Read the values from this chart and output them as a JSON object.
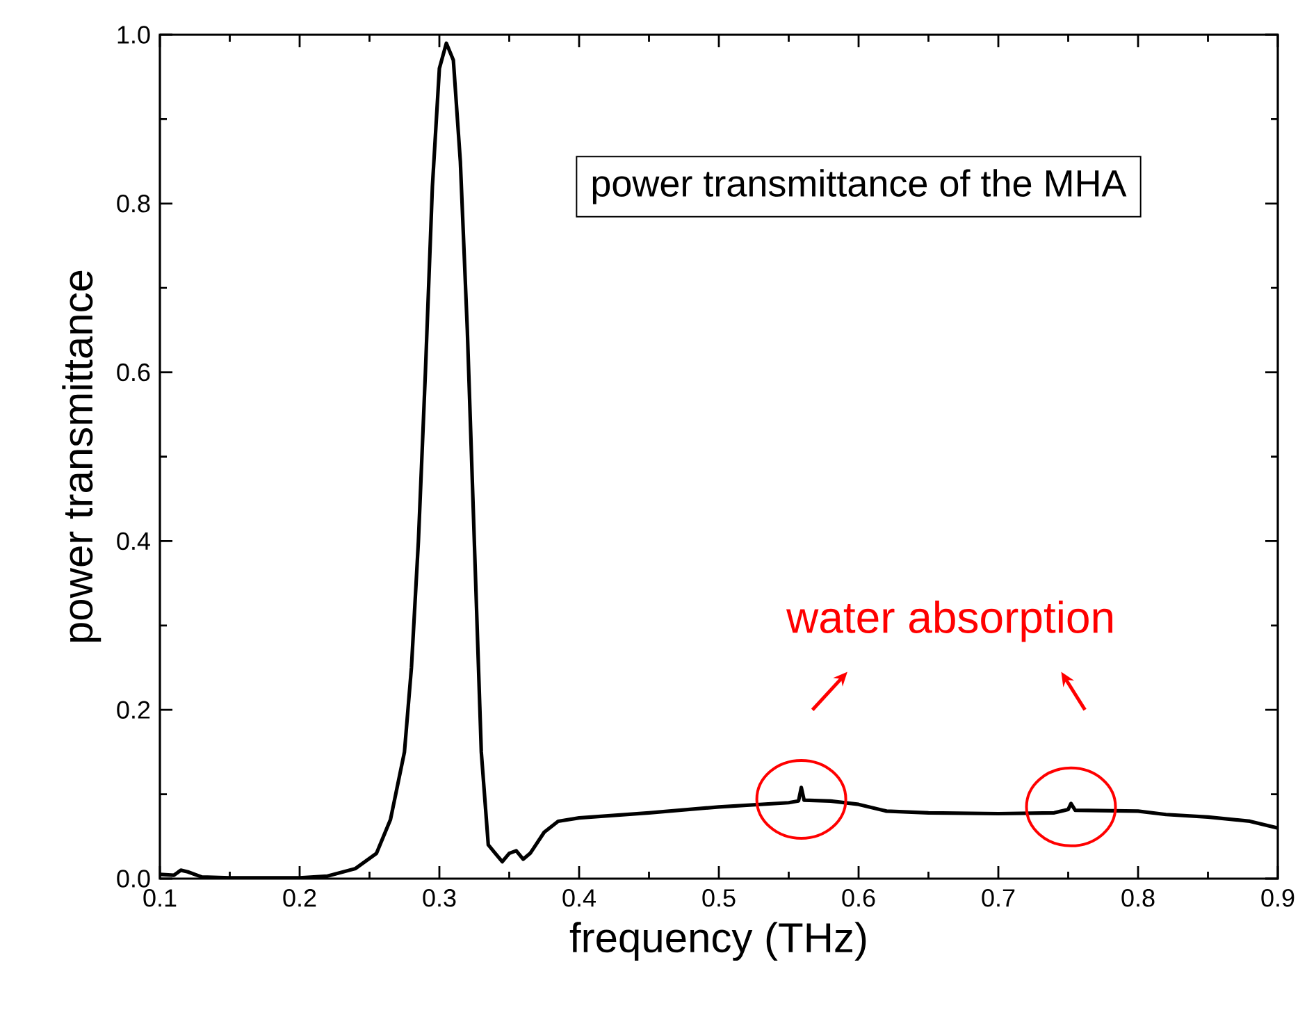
{
  "chart_data": {
    "type": "line",
    "xlabel": "frequency (THz)",
    "ylabel": "power transmittance",
    "annotations": [
      "power transmittance of the MHA",
      "water absorption"
    ],
    "xlim": [
      0.1,
      0.9
    ],
    "ylim": [
      0,
      1.0
    ],
    "xticks": [
      0.1,
      0.2,
      0.3,
      0.4,
      0.5,
      0.6,
      0.7,
      0.8,
      0.9
    ],
    "yticks": [
      {
        "value": 0,
        "label": "0.0"
      },
      0.2,
      0.4,
      0.6,
      0.8,
      {
        "value": 1.0,
        "label": "1.0"
      }
    ],
    "marker": "none",
    "line_style": "solid",
    "series": [
      {
        "color": "#000000",
        "x": [
          0.1,
          0.11,
          0.115,
          0.12,
          0.13,
          0.15,
          0.2,
          0.22,
          0.24,
          0.255,
          0.265,
          0.275,
          0.28,
          0.285,
          0.29,
          0.295,
          0.3,
          0.305,
          0.31,
          0.315,
          0.32,
          0.325,
          0.33,
          0.335,
          0.34,
          0.345,
          0.35,
          0.355,
          0.36,
          0.365,
          0.375,
          0.385,
          0.4,
          0.45,
          0.5,
          0.55,
          0.557,
          0.559,
          0.561,
          0.58,
          0.6,
          0.62,
          0.65,
          0.7,
          0.74,
          0.75,
          0.752,
          0.755,
          0.8,
          0.82,
          0.85,
          0.88,
          0.9
        ],
        "values": [
          0.005,
          0.004,
          0.01,
          0.008,
          0.002,
          0.001,
          0.001,
          0.003,
          0.012,
          0.03,
          0.07,
          0.15,
          0.25,
          0.4,
          0.6,
          0.82,
          0.96,
          0.99,
          0.97,
          0.85,
          0.65,
          0.4,
          0.15,
          0.04,
          0.03,
          0.02,
          0.03,
          0.033,
          0.023,
          0.03,
          0.055,
          0.068,
          0.072,
          0.078,
          0.085,
          0.09,
          0.092,
          0.108,
          0.093,
          0.092,
          0.088,
          0.08,
          0.078,
          0.077,
          0.078,
          0.082,
          0.089,
          0.081,
          0.08,
          0.076,
          0.073,
          0.068,
          0.06
        ]
      }
    ]
  }
}
